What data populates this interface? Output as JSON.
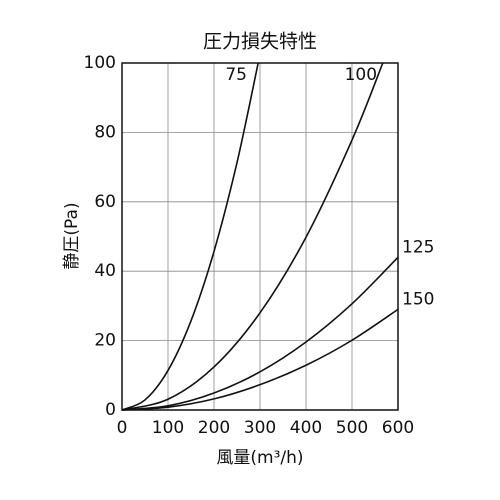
{
  "chart_data": {
    "type": "line",
    "title": "圧力損失特性",
    "x_label": "風量(m³/h)",
    "y_label": "静圧(Pa)",
    "xlim": [
      0,
      600
    ],
    "ylim": [
      0,
      100
    ],
    "xticks": [
      0,
      100,
      200,
      300,
      400,
      500,
      600
    ],
    "yticks": [
      0,
      20,
      40,
      60,
      80,
      100
    ],
    "grid": true,
    "series": [
      {
        "name": "75",
        "color": "#111111",
        "x": [
          0,
          50,
          100,
          150,
          200,
          250,
          296
        ],
        "values": [
          0,
          2.9,
          11.4,
          25.7,
          45.7,
          71.3,
          100
        ]
      },
      {
        "name": "100",
        "color": "#111111",
        "x": [
          0,
          100,
          200,
          300,
          400,
          500,
          567
        ],
        "values": [
          0,
          3.1,
          12.4,
          28,
          49.8,
          77.8,
          100
        ]
      },
      {
        "name": "125",
        "color": "#111111",
        "x": [
          0,
          100,
          200,
          300,
          400,
          500,
          600
        ],
        "values": [
          0,
          1.2,
          4.9,
          11,
          19.6,
          30.6,
          44
        ]
      },
      {
        "name": "150",
        "color": "#111111",
        "x": [
          0,
          100,
          200,
          300,
          400,
          500,
          600
        ],
        "values": [
          0,
          0.8,
          3.2,
          7.3,
          12.9,
          20.1,
          29
        ]
      }
    ]
  }
}
